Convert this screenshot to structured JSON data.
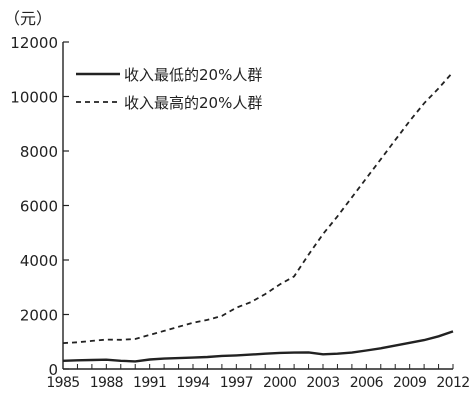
{
  "chart_data": {
    "type": "line",
    "ylabel": "（元）",
    "ylim": [
      0,
      12000
    ],
    "yticks": [
      0,
      2000,
      4000,
      6000,
      8000,
      10000,
      12000
    ],
    "xlim": [
      1985,
      2012
    ],
    "xticks": [
      "1985",
      "1988",
      "1991",
      "1994",
      "1997",
      "2000",
      "2003",
      "2006",
      "2009",
      "2012"
    ],
    "grid": false,
    "legend_position": "top-left",
    "series": [
      {
        "name": "收入最低的20%人群",
        "style": "solid",
        "color": "#222222",
        "x": [
          1985,
          1986,
          1987,
          1988,
          1989,
          1990,
          1991,
          1992,
          1993,
          1994,
          1995,
          1996,
          1997,
          1998,
          1999,
          2000,
          2001,
          2002,
          2003,
          2004,
          2005,
          2006,
          2007,
          2008,
          2009,
          2010,
          2011,
          2012
        ],
        "y": [
          300,
          320,
          330,
          340,
          300,
          280,
          350,
          380,
          400,
          420,
          440,
          480,
          500,
          530,
          560,
          590,
          600,
          610,
          540,
          560,
          600,
          680,
          760,
          860,
          960,
          1060,
          1200,
          1380
        ]
      },
      {
        "name": "收入最高的20%人群",
        "style": "dashed",
        "color": "#222222",
        "x": [
          1985,
          1986,
          1987,
          1988,
          1989,
          1990,
          1991,
          1992,
          1993,
          1994,
          1995,
          1996,
          1997,
          1998,
          1999,
          2000,
          2001,
          2002,
          2003,
          2004,
          2005,
          2006,
          2007,
          2008,
          2009,
          2010,
          2011,
          2012
        ],
        "y": [
          950,
          980,
          1030,
          1080,
          1070,
          1100,
          1250,
          1400,
          1550,
          1700,
          1800,
          1950,
          2250,
          2450,
          2750,
          3100,
          3400,
          4200,
          4950,
          5600,
          6300,
          7000,
          7700,
          8400,
          9100,
          9750,
          10300,
          10900
        ]
      }
    ]
  }
}
